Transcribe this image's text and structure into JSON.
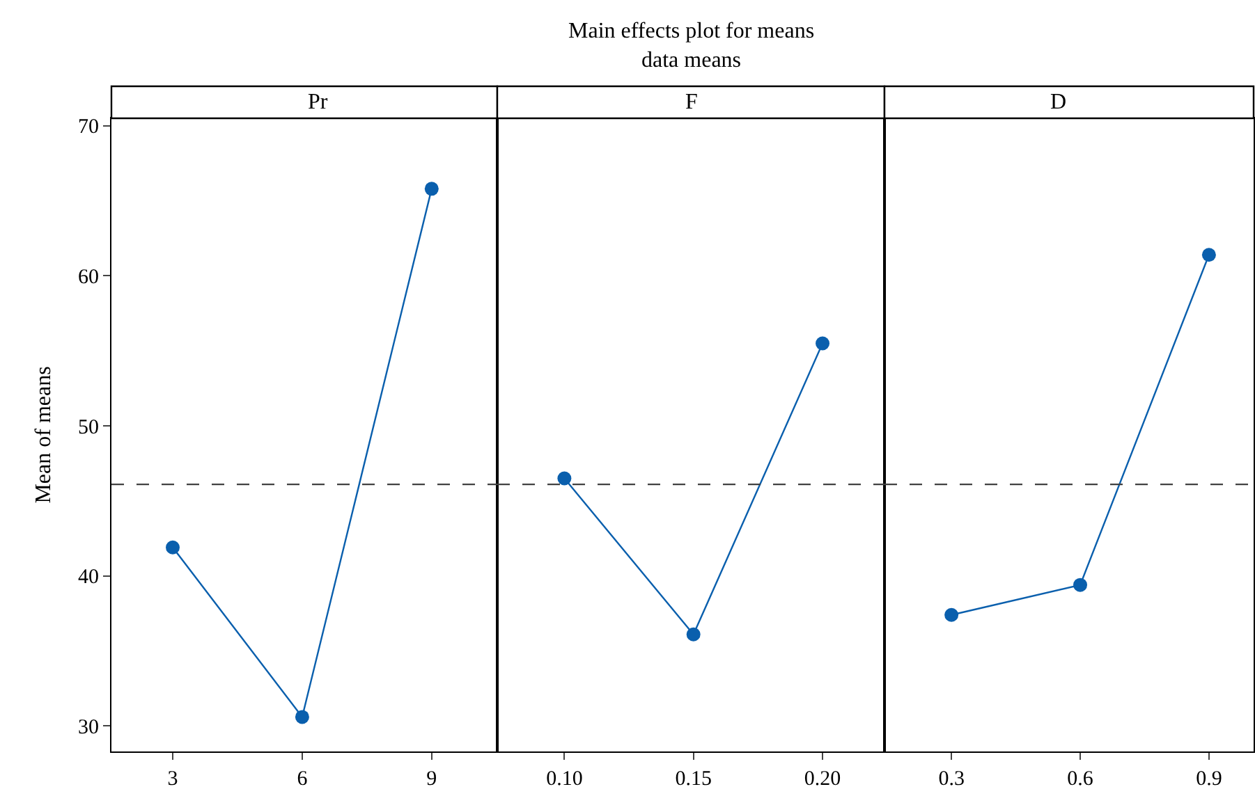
{
  "chart_data": [
    {
      "type": "line",
      "xlabel": "Pr",
      "ylabel": "Mean of means",
      "x": [
        3,
        6,
        9
      ],
      "series": [
        {
          "color": "#0a5fad",
          "values": [
            41.9,
            30.6,
            65.8
          ]
        }
      ],
      "xlim": [
        1.58,
        10.52
      ],
      "xticks": [
        3,
        6,
        9
      ],
      "ylim": [
        28.3,
        70.5
      ],
      "yticks": [
        30,
        40,
        50,
        60,
        70
      ],
      "ref_lines": [
        {
          "axis": "y",
          "value": 46.1,
          "color": "#404040",
          "line_style": "dashed"
        }
      ],
      "marker": "circle"
    },
    {
      "type": "line",
      "title": "Main effects plot for means",
      "subtitle": "data means",
      "xlabel": "F",
      "x": [
        0.1,
        0.15,
        0.2
      ],
      "series": [
        {
          "color": "#0a5fad",
          "values": [
            46.5,
            36.1,
            55.5
          ]
        }
      ],
      "xlim": [
        0.074,
        0.224
      ],
      "xticks": [
        {
          "value": 0.1,
          "label": "0.10"
        },
        {
          "value": 0.15,
          "label": "0.15"
        },
        {
          "value": 0.2,
          "label": "0.20"
        }
      ],
      "ylim": [
        28.3,
        70.5
      ],
      "tick_labels": "x",
      "ref_lines": [
        {
          "axis": "y",
          "value": 46.1,
          "color": "#404040",
          "line_style": "dashed"
        }
      ],
      "marker": "circle"
    },
    {
      "type": "line",
      "xlabel": "D",
      "x": [
        0.3,
        0.6,
        0.9
      ],
      "series": [
        {
          "color": "#0a5fad",
          "values": [
            37.4,
            39.4,
            61.4
          ]
        }
      ],
      "xlim": [
        0.144,
        1.004
      ],
      "xticks": [
        0.3,
        0.6,
        0.9
      ],
      "ylim": [
        28.3,
        70.5
      ],
      "tick_labels": "x",
      "ref_lines": [
        {
          "axis": "y",
          "value": 46.1,
          "color": "#404040",
          "line_style": "dashed"
        }
      ],
      "marker": "circle"
    }
  ]
}
